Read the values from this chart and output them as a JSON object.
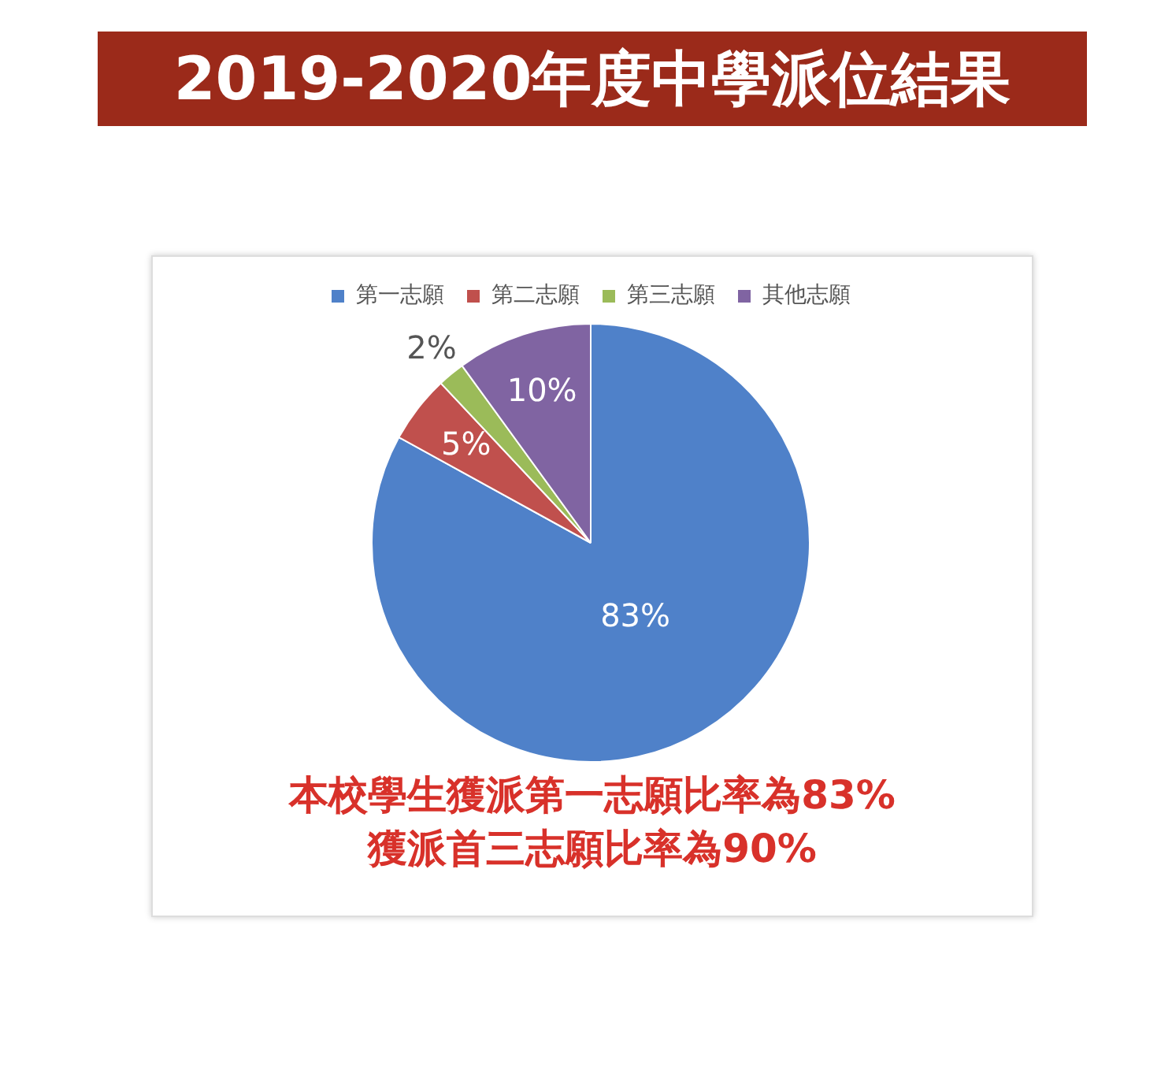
{
  "chart_data": {
    "type": "pie",
    "title": "2019-2020年度中學派位結果",
    "categories": [
      "第一志願",
      "第二志願",
      "第三志願",
      "其他志願"
    ],
    "values": [
      83,
      5,
      2,
      10
    ],
    "colors": [
      "#4f81c9",
      "#c0504d",
      "#9bbb59",
      "#8064a2"
    ],
    "value_labels": [
      "83%",
      "5%",
      "2%",
      "10%"
    ],
    "legend": "top",
    "annotations": [
      "本校學生獲派第一志願比率為83%",
      "獲派首三志願比率為90%"
    ]
  }
}
